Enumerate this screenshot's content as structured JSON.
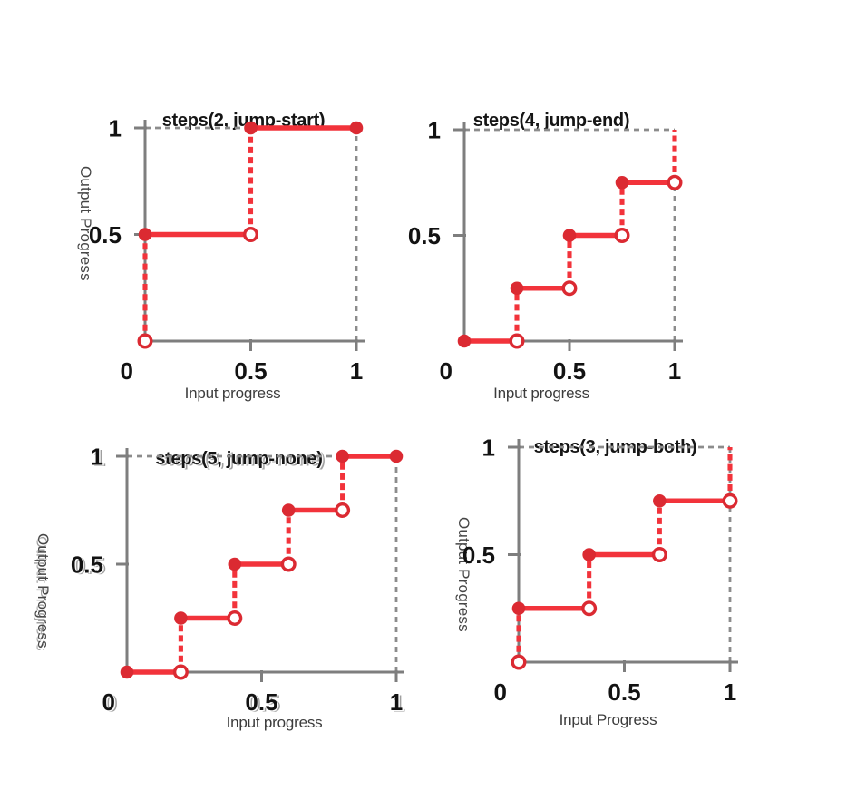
{
  "page": {
    "background": "#ffffff",
    "figure_kind": "CSS steps() easing function step diagrams"
  },
  "colors": {
    "curve_red": "#f2333b",
    "marker_red": "#db2a32",
    "axis_gray": "#7e7e7e",
    "guide_gray": "#8c8c8c",
    "tick_text": "#121212",
    "label_text": "#3c3c3c",
    "title_text": "#151515"
  },
  "chart_data": [
    {
      "type": "line",
      "title": "steps(2, jump-start)",
      "xlabel": "Input progress",
      "ylabel": "Output Progress",
      "params": {
        "steps": 2,
        "jump_term": "jump-start"
      },
      "xlim": [
        0,
        1
      ],
      "ylim": [
        0,
        1
      ],
      "origin_label": "0",
      "x_ticks": [
        {
          "value": 0.5,
          "label": "0.5"
        },
        {
          "value": 1,
          "label": "1"
        }
      ],
      "y_ticks": [
        {
          "value": 0.5,
          "label": "0.5"
        },
        {
          "value": 1,
          "label": "1"
        }
      ],
      "solid_segments": [
        [
          0,
          0.5,
          0.5,
          0.5
        ],
        [
          0.5,
          1,
          1,
          1
        ]
      ],
      "jump_segments": [
        [
          0,
          0,
          0,
          0.5
        ],
        [
          0.5,
          0.5,
          0.5,
          1
        ]
      ],
      "guide_segments": [
        [
          0,
          1,
          1,
          1
        ],
        [
          1,
          0,
          1,
          1
        ]
      ],
      "markers_filled": [
        [
          0,
          0.5
        ],
        [
          0.5,
          1
        ],
        [
          1,
          1
        ]
      ],
      "markers_open": [
        [
          0,
          0
        ],
        [
          0.5,
          0.5
        ]
      ]
    },
    {
      "type": "line",
      "title": "steps(4, jump-end)",
      "xlabel": "Input progress",
      "ylabel": "",
      "params": {
        "steps": 4,
        "jump_term": "jump-end"
      },
      "xlim": [
        0,
        1
      ],
      "ylim": [
        0,
        1
      ],
      "origin_label": "0",
      "x_ticks": [
        {
          "value": 0.5,
          "label": "0.5"
        },
        {
          "value": 1,
          "label": "1"
        }
      ],
      "y_ticks": [
        {
          "value": 0.5,
          "label": "0.5"
        },
        {
          "value": 1,
          "label": "1"
        }
      ],
      "solid_segments": [
        [
          0,
          0,
          0.25,
          0
        ],
        [
          0.25,
          0.25,
          0.5,
          0.25
        ],
        [
          0.5,
          0.5,
          0.75,
          0.5
        ],
        [
          0.75,
          0.75,
          1,
          0.75
        ]
      ],
      "jump_segments": [
        [
          0.25,
          0,
          0.25,
          0.25
        ],
        [
          0.5,
          0.25,
          0.5,
          0.5
        ],
        [
          0.75,
          0.5,
          0.75,
          0.75
        ],
        [
          1,
          0.75,
          1,
          1
        ]
      ],
      "guide_segments": [
        [
          0,
          1,
          1,
          1
        ],
        [
          1,
          0,
          1,
          1
        ]
      ],
      "markers_filled": [
        [
          0,
          0
        ],
        [
          0.25,
          0.25
        ],
        [
          0.5,
          0.5
        ],
        [
          0.75,
          0.75
        ]
      ],
      "markers_open": [
        [
          0.25,
          0
        ],
        [
          0.5,
          0.25
        ],
        [
          0.75,
          0.5
        ],
        [
          1,
          0.75
        ]
      ]
    },
    {
      "type": "line",
      "title": "steps(5, jump-none)",
      "xlabel": "Input progress",
      "ylabel": "Output Progress",
      "params": {
        "steps": 5,
        "jump_term": "jump-none"
      },
      "xlim": [
        0,
        1
      ],
      "ylim": [
        0,
        1
      ],
      "origin_label": "0",
      "x_ticks": [
        {
          "value": 0.5,
          "label": "0.5"
        },
        {
          "value": 1,
          "label": "1"
        }
      ],
      "y_ticks": [
        {
          "value": 0.5,
          "label": "0.5"
        },
        {
          "value": 1,
          "label": "1"
        }
      ],
      "solid_segments": [
        [
          0,
          0,
          0.2,
          0
        ],
        [
          0.2,
          0.25,
          0.4,
          0.25
        ],
        [
          0.4,
          0.5,
          0.6,
          0.5
        ],
        [
          0.6,
          0.75,
          0.8,
          0.75
        ],
        [
          0.8,
          1,
          1,
          1
        ]
      ],
      "jump_segments": [
        [
          0.2,
          0,
          0.2,
          0.25
        ],
        [
          0.4,
          0.25,
          0.4,
          0.5
        ],
        [
          0.6,
          0.5,
          0.6,
          0.75
        ],
        [
          0.8,
          0.75,
          0.8,
          1
        ]
      ],
      "guide_segments": [
        [
          0,
          1,
          1,
          1
        ],
        [
          1,
          0,
          1,
          1
        ]
      ],
      "markers_filled": [
        [
          0,
          0
        ],
        [
          0.2,
          0.25
        ],
        [
          0.4,
          0.5
        ],
        [
          0.6,
          0.75
        ],
        [
          0.8,
          1
        ],
        [
          1,
          1
        ]
      ],
      "markers_open": [
        [
          0.2,
          0
        ],
        [
          0.4,
          0.25
        ],
        [
          0.6,
          0.5
        ],
        [
          0.8,
          0.75
        ]
      ]
    },
    {
      "type": "line",
      "title": "steps(3, jump-both)",
      "xlabel": "Input Progress",
      "ylabel": "Output Progress",
      "params": {
        "steps": 3,
        "jump_term": "jump-both"
      },
      "xlim": [
        0,
        1
      ],
      "ylim": [
        0,
        1
      ],
      "origin_label": "0",
      "x_ticks": [
        {
          "value": 0.5,
          "label": "0.5"
        },
        {
          "value": 1,
          "label": "1"
        }
      ],
      "y_ticks": [
        {
          "value": 0.5,
          "label": "0.5"
        },
        {
          "value": 1,
          "label": "1"
        }
      ],
      "solid_segments": [
        [
          0,
          0.25,
          0.3333,
          0.25
        ],
        [
          0.3333,
          0.5,
          0.6667,
          0.5
        ],
        [
          0.6667,
          0.75,
          1,
          0.75
        ]
      ],
      "jump_segments": [
        [
          0,
          0,
          0,
          0.25
        ],
        [
          0.3333,
          0.25,
          0.3333,
          0.5
        ],
        [
          0.6667,
          0.5,
          0.6667,
          0.75
        ],
        [
          1,
          0.75,
          1,
          1
        ]
      ],
      "guide_segments": [
        [
          0,
          1,
          1,
          1
        ],
        [
          1,
          0,
          1,
          1
        ]
      ],
      "markers_filled": [
        [
          0,
          0.25
        ],
        [
          0.3333,
          0.5
        ],
        [
          0.6667,
          0.75
        ]
      ],
      "markers_open": [
        [
          0,
          0
        ],
        [
          0.3333,
          0.25
        ],
        [
          0.6667,
          0.5
        ],
        [
          1,
          0.75
        ]
      ]
    }
  ]
}
